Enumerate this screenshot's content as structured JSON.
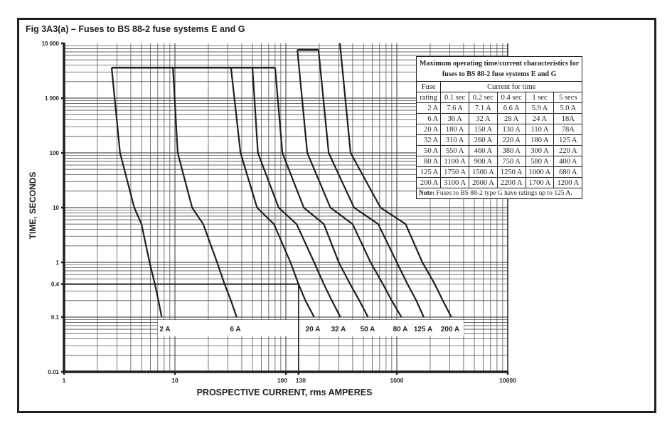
{
  "figure_title": "Fig 3A3(a) – Fuses to BS 88-2 fuse systems E and G",
  "chart_data": {
    "type": "line",
    "xlabel": "PROSPECTIVE CURRENT, rms AMPERES",
    "ylabel": "TIME, SECONDS",
    "x_scale": "log",
    "y_scale": "log",
    "xlim": [
      1,
      10000
    ],
    "ylim": [
      0.01,
      10000
    ],
    "grid": true,
    "x_ticks": [
      {
        "v": 1,
        "label": "1"
      },
      {
        "v": 10,
        "label": "10"
      },
      {
        "v": 100,
        "label": "100"
      },
      {
        "v": 130,
        "label": "130"
      },
      {
        "v": 1000,
        "label": "1000"
      },
      {
        "v": 10000,
        "label": "10000"
      }
    ],
    "y_ticks": [
      {
        "v": 10000,
        "label": "10 000"
      },
      {
        "v": 1000,
        "label": "1 000"
      },
      {
        "v": 100,
        "label": "100"
      },
      {
        "v": 10,
        "label": "10"
      },
      {
        "v": 1,
        "label": "1"
      },
      {
        "v": 0.4,
        "label": "0.4"
      },
      {
        "v": 0.1,
        "label": "0.1"
      },
      {
        "v": 0.01,
        "label": "0.01"
      }
    ],
    "reference_lines": [
      {
        "time": 0.4,
        "current": 130
      }
    ],
    "plateaus": [
      {
        "time": 3600,
        "from": 2.69,
        "to": 80
      },
      {
        "time": 7600,
        "from": 127,
        "to": 197
      }
    ],
    "series": [
      {
        "name": "2 A",
        "points": [
          [
            2.69,
            3600
          ],
          [
            3.2,
            100
          ],
          [
            4.3,
            10
          ],
          [
            5.0,
            5
          ],
          [
            5.9,
            1
          ],
          [
            6.6,
            0.4
          ],
          [
            7.1,
            0.2
          ],
          [
            7.6,
            0.1
          ]
        ]
      },
      {
        "name": "6 A",
        "points": [
          [
            9.6,
            3600
          ],
          [
            10.6,
            100
          ],
          [
            14.3,
            10
          ],
          [
            18,
            5
          ],
          [
            24,
            1
          ],
          [
            28,
            0.4
          ],
          [
            32,
            0.2
          ],
          [
            36,
            0.1
          ]
        ]
      },
      {
        "name": "20 A",
        "points": [
          [
            32,
            3600
          ],
          [
            39,
            100
          ],
          [
            55,
            10
          ],
          [
            78,
            5
          ],
          [
            110,
            1
          ],
          [
            130,
            0.4
          ],
          [
            150,
            0.2
          ],
          [
            180,
            0.1
          ]
        ]
      },
      {
        "name": "32 A",
        "points": [
          [
            50,
            3600
          ],
          [
            56,
            100
          ],
          [
            86,
            10
          ],
          [
            125,
            5
          ],
          [
            180,
            1
          ],
          [
            220,
            0.4
          ],
          [
            260,
            0.2
          ],
          [
            310,
            0.1
          ]
        ]
      },
      {
        "name": "50 A",
        "points": [
          [
            80,
            3600
          ],
          [
            93,
            100
          ],
          [
            145,
            10
          ],
          [
            220,
            5
          ],
          [
            300,
            1
          ],
          [
            380,
            0.4
          ],
          [
            460,
            0.2
          ],
          [
            550,
            0.1
          ]
        ]
      },
      {
        "name": "80 A",
        "points": [
          [
            127,
            7600
          ],
          [
            156,
            100
          ],
          [
            252,
            10
          ],
          [
            400,
            5
          ],
          [
            580,
            1
          ],
          [
            750,
            0.4
          ],
          [
            900,
            0.2
          ],
          [
            1100,
            0.1
          ]
        ]
      },
      {
        "name": "125 A",
        "points": [
          [
            197,
            7600
          ],
          [
            243,
            100
          ],
          [
            412,
            10
          ],
          [
            680,
            5
          ],
          [
            1000,
            1
          ],
          [
            1250,
            0.4
          ],
          [
            1500,
            0.2
          ],
          [
            1750,
            0.1
          ]
        ]
      },
      {
        "name": "200 A",
        "points": [
          [
            307,
            10000
          ],
          [
            383,
            100
          ],
          [
            713,
            10
          ],
          [
            1200,
            5
          ],
          [
            1700,
            1
          ],
          [
            2200,
            0.4
          ],
          [
            2600,
            0.2
          ],
          [
            3100,
            0.1
          ]
        ]
      }
    ]
  },
  "table": {
    "caption_line1": "Maximum operating time/current characteristics for",
    "caption_line2": "fuses to BS 88-2 fuse systems E and G",
    "fuse_header": "Fuse",
    "fuse_header2": "rating",
    "group_header": "Current for time",
    "columns": [
      "0.1 sec",
      "0.2 sec",
      "0.4 sec",
      "1 sec",
      "5 secs"
    ],
    "rows": [
      [
        "2 A",
        "7.6 A",
        "7.1 A",
        "6.6 A",
        "5.9 A",
        "5.0 A"
      ],
      [
        "6 A",
        "36 A",
        "32 A",
        "28 A",
        "24 A",
        "18A"
      ],
      [
        "20 A",
        "180 A",
        "150 A",
        "130 A",
        "110 A",
        "78A"
      ],
      [
        "32 A",
        "310 A",
        "260 A",
        "220 A",
        "180 A",
        "125 A"
      ],
      [
        "50 A",
        "550 A",
        "460 A",
        "380 A",
        "300 A",
        "220 A"
      ],
      [
        "80 A",
        "1100 A",
        "900 A",
        "750 A",
        "580 A",
        "400 A"
      ],
      [
        "125 A",
        "1750 A",
        "1500 A",
        "1250 A",
        "1000 A",
        "680 A"
      ],
      [
        "200 A",
        "3100 A",
        "2600 A",
        "2200 A",
        "1700 A",
        "1200 A"
      ]
    ],
    "note_label": "Note:",
    "note_text": " Fuses to BS 88-2 type G have ratings up to 125 A."
  }
}
